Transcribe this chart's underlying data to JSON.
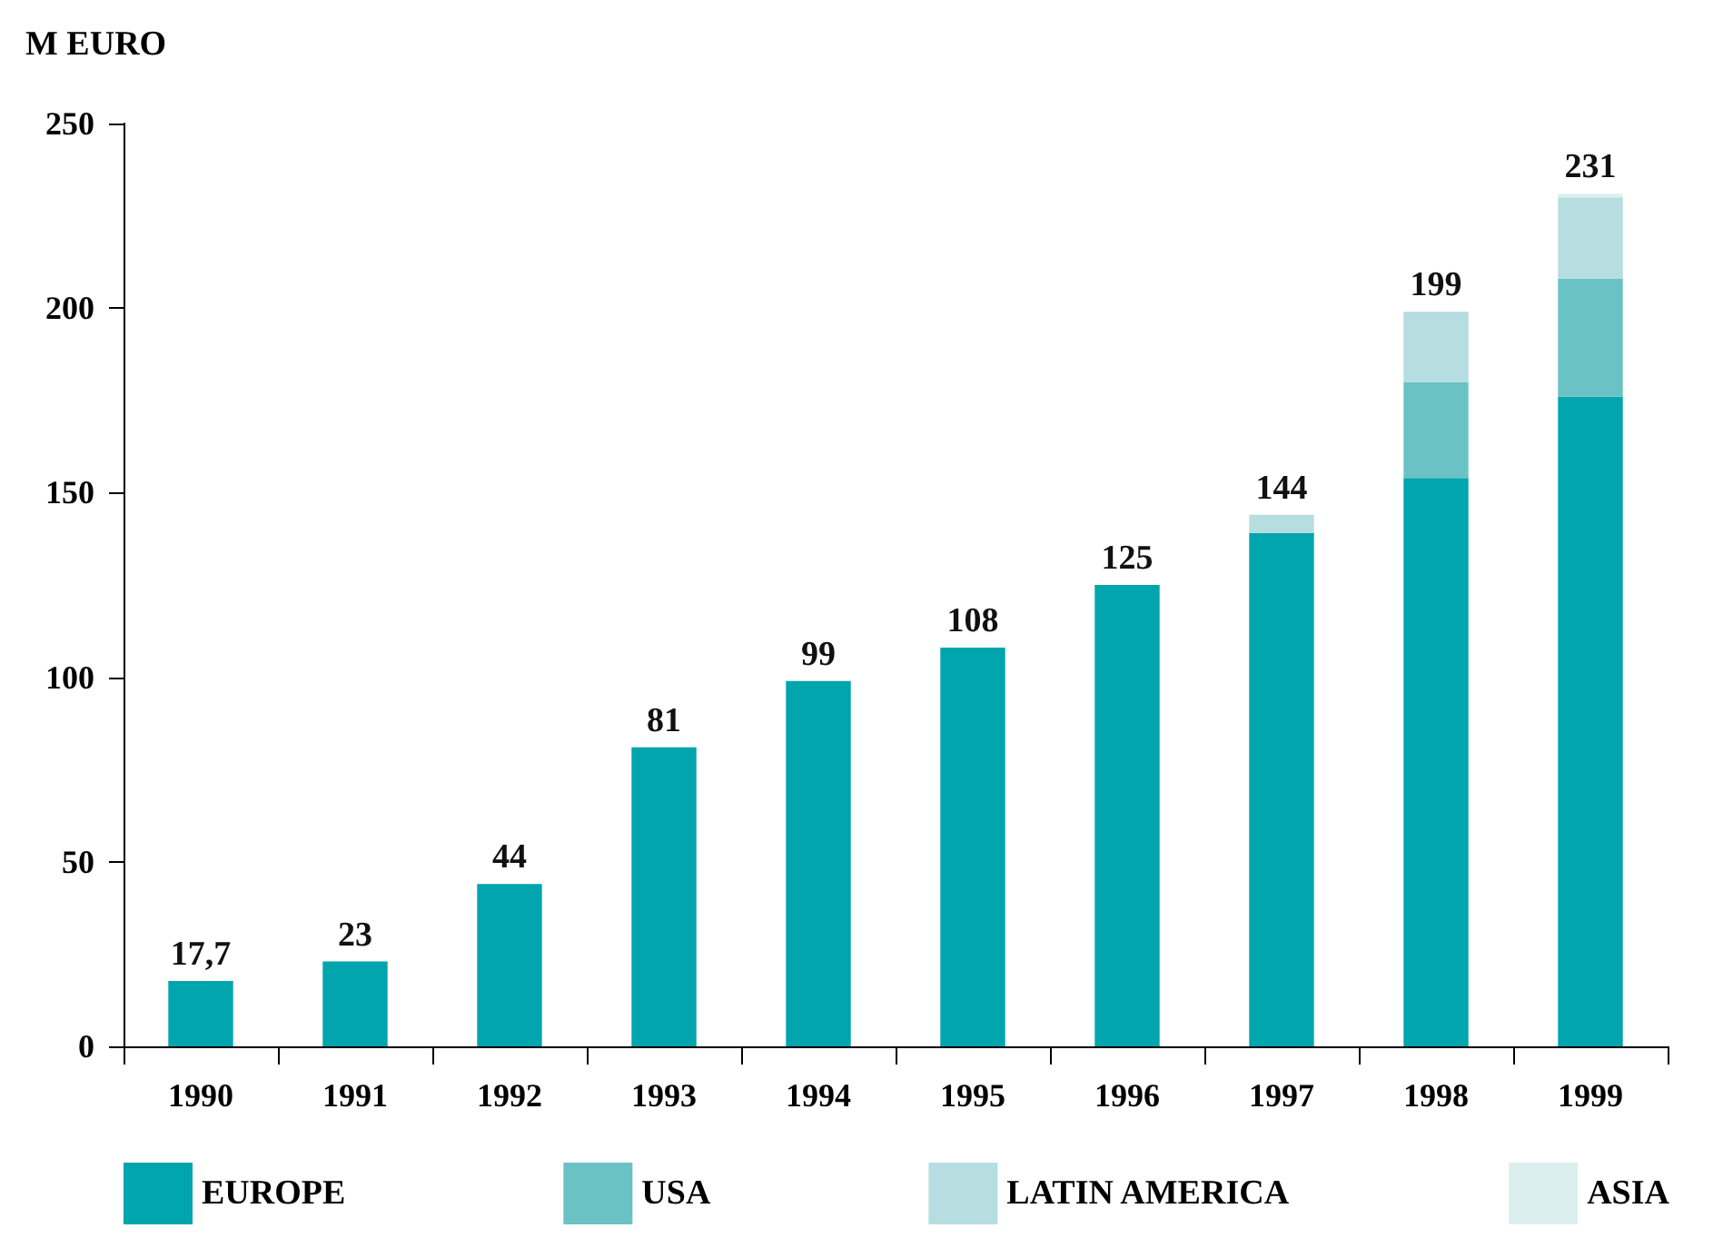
{
  "chart_data": {
    "type": "bar",
    "stacked": true,
    "ylabel": "M EURO",
    "categories": [
      "1990",
      "1991",
      "1992",
      "1993",
      "1994",
      "1995",
      "1996",
      "1997",
      "1998",
      "1999"
    ],
    "series": [
      {
        "name": "EUROPE",
        "color": "#00a5ad",
        "values": [
          17.7,
          23,
          44,
          81,
          99,
          108,
          125,
          139,
          154,
          176
        ]
      },
      {
        "name": "USA",
        "color": "#6ac2c5",
        "values": [
          null,
          null,
          null,
          null,
          null,
          null,
          null,
          null,
          26,
          32
        ]
      },
      {
        "name": "LATIN AMERICA",
        "color": "#b6dddf",
        "values": [
          null,
          null,
          null,
          null,
          null,
          null,
          null,
          5,
          19,
          22
        ]
      },
      {
        "name": "ASIA",
        "color": "#dcefef",
        "values": [
          null,
          null,
          null,
          null,
          null,
          null,
          null,
          null,
          null,
          1
        ]
      }
    ],
    "totals": [
      "17,7",
      "23",
      "44",
      "81",
      "99",
      "108",
      "125",
      "144",
      "199",
      "231"
    ],
    "ylim": [
      0,
      250
    ],
    "yticks": [
      0,
      50,
      100,
      150,
      200,
      250
    ],
    "grid": false,
    "legend": "bottom"
  }
}
